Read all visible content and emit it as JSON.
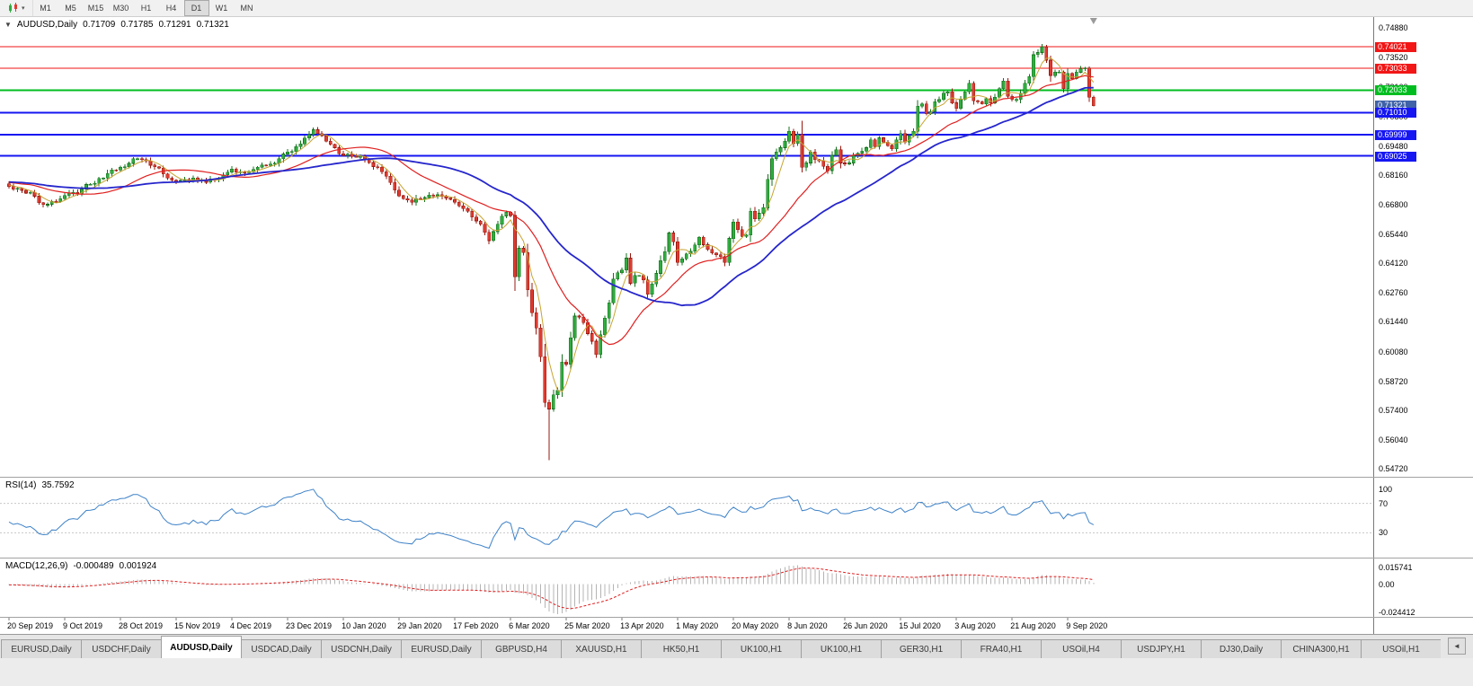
{
  "toolbar": {
    "timeframes": [
      "M1",
      "M5",
      "M15",
      "M30",
      "H1",
      "H4",
      "D1",
      "W1",
      "MN"
    ],
    "active_timeframe": "D1"
  },
  "chart": {
    "collapse_arrow": "▼",
    "symbol_period": "AUDUSD,Daily",
    "open": "0.71709",
    "high": "0.71785",
    "low": "0.71291",
    "close": "0.71321"
  },
  "indicator_labels": {
    "rsi_name": "RSI(14)",
    "rsi_value": "35.7592",
    "macd_name": "MACD(12,26,9)",
    "macd_main": "-0.000489",
    "macd_signal": "0.001924"
  },
  "colors": {
    "bull_fill": "#2fae3e",
    "bull_stroke": "#17701f",
    "bear_fill": "#e13b30",
    "bear_stroke": "#98180f",
    "rsi_line": "#3e82c8",
    "macd_histogram": "#b4b4b4",
    "macd_signal": "#e02020"
  },
  "tabs": {
    "active_index": 2,
    "scroll_button": "◄",
    "items": [
      "EURUSD,Daily",
      "USDCHF,Daily",
      "AUDUSD,Daily",
      "USDCAD,Daily",
      "USDCNH,Daily",
      "EURUSD,Daily",
      "GBPUSD,H4",
      "XAUUSD,H1",
      "HK50,H1",
      "UK100,H1",
      "UK100,H1",
      "GER30,H1",
      "FRA40,H1",
      "USOil,H4",
      "USDJPY,H1",
      "DJ30,Daily",
      "CHINA300,H1",
      "USOil,H1"
    ]
  },
  "chart_data": {
    "type": "candlestick",
    "symbol": "AUDUSD",
    "timeframe": "Daily",
    "y_range": [
      0.5472,
      0.7488
    ],
    "candle_count": 254,
    "candles_per_label": 13,
    "x_labels": [
      "20 Sep 2019",
      "9 Oct 2019",
      "28 Oct 2019",
      "15 Nov 2019",
      "4 Dec 2019",
      "23 Dec 2019",
      "10 Jan 2020",
      "29 Jan 2020",
      "17 Feb 2020",
      "6 Mar 2020",
      "25 Mar 2020",
      "13 Apr 2020",
      "1 May 2020",
      "20 May 2020",
      "8 Jun 2020",
      "26 Jun 2020",
      "15 Jul 2020",
      "3 Aug 2020",
      "21 Aug 2020",
      "9 Sep 2020"
    ],
    "y_ticks": [
      "0.74880",
      "0.73520",
      "0.72160",
      "0.70800",
      "0.69480",
      "0.68160",
      "0.66800",
      "0.65440",
      "0.64120",
      "0.62760",
      "0.61440",
      "0.60080",
      "0.58720",
      "0.57400",
      "0.56040",
      "0.54720"
    ],
    "hlines": [
      {
        "value": 0.74021,
        "label": "0.74021",
        "color": "#f21616",
        "width": 1
      },
      {
        "value": 0.73033,
        "label": "0.73033",
        "color": "#f21616",
        "width": 1
      },
      {
        "value": 0.72033,
        "label": "0.72033",
        "color": "#00bd1f",
        "width": 2
      },
      {
        "value": 0.7101,
        "label": "0.71010",
        "color": "#1616f2",
        "width": 2
      },
      {
        "value": 0.69999,
        "label": "0.69999",
        "color": "#1616f2",
        "width": 2
      },
      {
        "value": 0.69025,
        "label": "0.69025",
        "color": "#1616f2",
        "width": 2
      }
    ],
    "current_price": {
      "value": 0.71321,
      "label": "0.71321",
      "bg": "#3f62a8"
    },
    "moving_averages": [
      {
        "name": "ma-fast",
        "period": 5,
        "color": "#c8a432",
        "width": 1
      },
      {
        "name": "ma-medium",
        "period": 20,
        "color": "#e02020",
        "width": 1.2
      },
      {
        "name": "ma-slow",
        "period": 40,
        "color": "#2626cc",
        "width": 1.8
      }
    ],
    "indicators": {
      "rsi": {
        "period": 14,
        "value_label": "35.7592",
        "levels": [
          70,
          30
        ],
        "scale_labels": [
          "100",
          "70",
          "30"
        ]
      },
      "macd": {
        "params": "12,26,9",
        "scale_max": 0.015741,
        "scale_min": -0.024412,
        "scale_labels": [
          "0.015741",
          "0.00",
          "-0.024412"
        ]
      }
    },
    "spikes": [
      {
        "i": 71,
        "high": 0.7032
      },
      {
        "i": 118,
        "low": 0.63
      },
      {
        "i": 126,
        "low": 0.551
      },
      {
        "i": 185,
        "high": 0.7064
      },
      {
        "i": 241,
        "high": 0.7413
      }
    ],
    "last_candle": {
      "o": 0.71709,
      "h": 0.71785,
      "l": 0.71291,
      "c": 0.71321
    },
    "price_anchors": [
      [
        0,
        0.6763
      ],
      [
        3,
        0.6745
      ],
      [
        6,
        0.6718
      ],
      [
        8,
        0.668
      ],
      [
        10,
        0.6695
      ],
      [
        13,
        0.6721
      ],
      [
        15,
        0.6735
      ],
      [
        17,
        0.675
      ],
      [
        19,
        0.6772
      ],
      [
        21,
        0.68
      ],
      [
        23,
        0.6822
      ],
      [
        26,
        0.685
      ],
      [
        28,
        0.6868
      ],
      [
        30,
        0.689
      ],
      [
        32,
        0.688
      ],
      [
        34,
        0.6852
      ],
      [
        36,
        0.682
      ],
      [
        39,
        0.6788
      ],
      [
        41,
        0.6795
      ],
      [
        43,
        0.6802
      ],
      [
        46,
        0.6782
      ],
      [
        48,
        0.6795
      ],
      [
        50,
        0.6815
      ],
      [
        52,
        0.6842
      ],
      [
        54,
        0.683
      ],
      [
        55,
        0.6825
      ],
      [
        57,
        0.684
      ],
      [
        58,
        0.685
      ],
      [
        60,
        0.6858
      ],
      [
        61,
        0.6865
      ],
      [
        63,
        0.689
      ],
      [
        65,
        0.692
      ],
      [
        67,
        0.6945
      ],
      [
        68,
        0.6958
      ],
      [
        70,
        0.7
      ],
      [
        71,
        0.7022
      ],
      [
        73,
        0.6995
      ],
      [
        75,
        0.6955
      ],
      [
        76,
        0.694
      ],
      [
        78,
        0.6905
      ],
      [
        80,
        0.69
      ],
      [
        81,
        0.6898
      ],
      [
        83,
        0.6885
      ],
      [
        84,
        0.6872
      ],
      [
        86,
        0.685
      ],
      [
        87,
        0.683
      ],
      [
        89,
        0.678
      ],
      [
        91,
        0.672
      ],
      [
        93,
        0.67
      ],
      [
        94,
        0.669
      ],
      [
        96,
        0.6705
      ],
      [
        97,
        0.6712
      ],
      [
        99,
        0.672
      ],
      [
        100,
        0.6725
      ],
      [
        102,
        0.671
      ],
      [
        104,
        0.669
      ],
      [
        106,
        0.6662
      ],
      [
        107,
        0.665
      ],
      [
        109,
        0.6605
      ],
      [
        110,
        0.659
      ],
      [
        112,
        0.6515
      ],
      [
        114,
        0.659
      ],
      [
        116,
        0.6645
      ],
      [
        117,
        0.663
      ],
      [
        118,
        0.635
      ],
      [
        119,
        0.648
      ],
      [
        120,
        0.646
      ],
      [
        121,
        0.629
      ],
      [
        122,
        0.6185
      ],
      [
        123,
        0.6115
      ],
      [
        124,
        0.5985
      ],
      [
        125,
        0.5775
      ],
      [
        126,
        0.5745
      ],
      [
        127,
        0.581
      ],
      [
        128,
        0.583
      ],
      [
        129,
        0.596
      ],
      [
        130,
        0.595
      ],
      [
        131,
        0.607
      ],
      [
        132,
        0.617
      ],
      [
        133,
        0.6165
      ],
      [
        134,
        0.614
      ],
      [
        135,
        0.609
      ],
      [
        136,
        0.6055
      ],
      [
        137,
        0.5995
      ],
      [
        138,
        0.6085
      ],
      [
        139,
        0.616
      ],
      [
        140,
        0.623
      ],
      [
        141,
        0.634
      ],
      [
        143,
        0.638
      ],
      [
        144,
        0.6435
      ],
      [
        145,
        0.632
      ],
      [
        146,
        0.6355
      ],
      [
        148,
        0.6335
      ],
      [
        149,
        0.627
      ],
      [
        151,
        0.6365
      ],
      [
        153,
        0.6465
      ],
      [
        154,
        0.655
      ],
      [
        155,
        0.651
      ],
      [
        156,
        0.6415
      ],
      [
        158,
        0.6455
      ],
      [
        160,
        0.6495
      ],
      [
        161,
        0.653
      ],
      [
        163,
        0.6475
      ],
      [
        165,
        0.645
      ],
      [
        167,
        0.6415
      ],
      [
        168,
        0.6525
      ],
      [
        169,
        0.66
      ],
      [
        170,
        0.6565
      ],
      [
        171,
        0.6535
      ],
      [
        172,
        0.654
      ],
      [
        173,
        0.665
      ],
      [
        174,
        0.6615
      ],
      [
        175,
        0.664
      ],
      [
        176,
        0.6665
      ],
      [
        177,
        0.6795
      ],
      [
        178,
        0.689
      ],
      [
        179,
        0.692
      ],
      [
        180,
        0.694
      ],
      [
        181,
        0.697
      ],
      [
        182,
        0.7015
      ],
      [
        183,
        0.696
      ],
      [
        184,
        0.7
      ],
      [
        185,
        0.685
      ],
      [
        186,
        0.687
      ],
      [
        187,
        0.692
      ],
      [
        188,
        0.6885
      ],
      [
        189,
        0.688
      ],
      [
        190,
        0.6855
      ],
      [
        191,
        0.6835
      ],
      [
        192,
        0.6905
      ],
      [
        193,
        0.693
      ],
      [
        194,
        0.687
      ],
      [
        195,
        0.6865
      ],
      [
        196,
        0.687
      ],
      [
        197,
        0.6905
      ],
      [
        198,
        0.6915
      ],
      [
        199,
        0.6925
      ],
      [
        200,
        0.694
      ],
      [
        201,
        0.6975
      ],
      [
        202,
        0.6945
      ],
      [
        203,
        0.6985
      ],
      [
        204,
        0.6965
      ],
      [
        205,
        0.695
      ],
      [
        206,
        0.6935
      ],
      [
        207,
        0.6975
      ],
      [
        208,
        0.7005
      ],
      [
        209,
        0.6965
      ],
      [
        210,
        0.6995
      ],
      [
        211,
        0.7015
      ],
      [
        212,
        0.713
      ],
      [
        213,
        0.714
      ],
      [
        214,
        0.7095
      ],
      [
        215,
        0.7105
      ],
      [
        216,
        0.715
      ],
      [
        217,
        0.716
      ],
      [
        218,
        0.719
      ],
      [
        219,
        0.7195
      ],
      [
        220,
        0.7145
      ],
      [
        221,
        0.712
      ],
      [
        222,
        0.716
      ],
      [
        223,
        0.7195
      ],
      [
        224,
        0.7235
      ],
      [
        225,
        0.7155
      ],
      [
        226,
        0.715
      ],
      [
        227,
        0.714
      ],
      [
        228,
        0.7165
      ],
      [
        229,
        0.7145
      ],
      [
        230,
        0.717
      ],
      [
        231,
        0.721
      ],
      [
        232,
        0.7245
      ],
      [
        233,
        0.7175
      ],
      [
        234,
        0.716
      ],
      [
        235,
        0.716
      ],
      [
        236,
        0.719
      ],
      [
        237,
        0.7235
      ],
      [
        238,
        0.7265
      ],
      [
        239,
        0.7365
      ],
      [
        240,
        0.7375
      ],
      [
        241,
        0.74
      ],
      [
        242,
        0.734
      ],
      [
        243,
        0.727
      ],
      [
        244,
        0.7285
      ],
      [
        245,
        0.7285
      ],
      [
        246,
        0.721
      ],
      [
        247,
        0.728
      ],
      [
        248,
        0.7255
      ],
      [
        249,
        0.7285
      ],
      [
        250,
        0.73
      ],
      [
        251,
        0.7305
      ],
      [
        252,
        0.71709
      ],
      [
        253,
        0.71321
      ]
    ]
  }
}
